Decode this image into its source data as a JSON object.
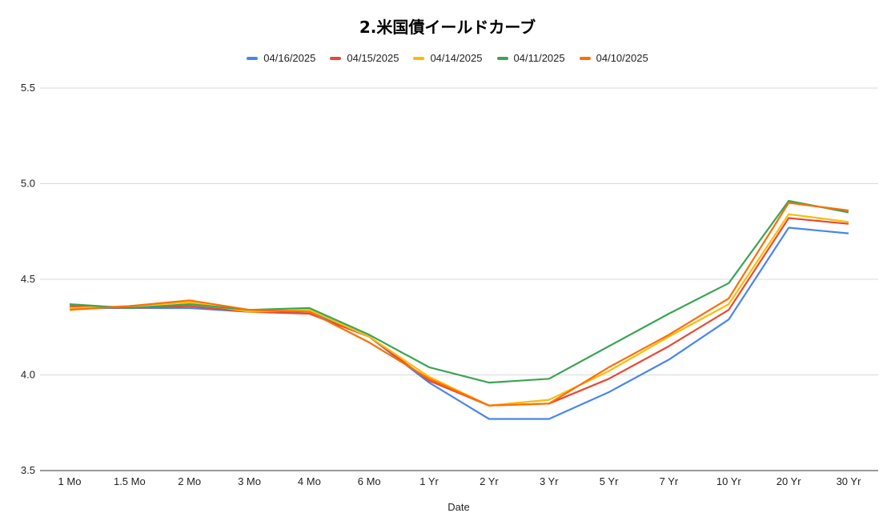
{
  "chart_data": {
    "type": "line",
    "title": "2.米国債イールドカーブ",
    "xlabel": "Date",
    "ylabel": "",
    "ylim": [
      3.5,
      5.5
    ],
    "yticks": [
      "5.5",
      "5.0",
      "4.5",
      "4.0",
      "3.5"
    ],
    "grid": true,
    "legend_position": "top",
    "categories": [
      "1 Mo",
      "1.5 Mo",
      "2 Mo",
      "3 Mo",
      "4 Mo",
      "6 Mo",
      "1 Yr",
      "2 Yr",
      "3 Yr",
      "5 Yr",
      "7 Yr",
      "10 Yr",
      "20 Yr",
      "30 Yr"
    ],
    "series": [
      {
        "name": "04/16/2025",
        "color": "#4a86e8",
        "values": [
          4.35,
          4.35,
          4.35,
          4.33,
          4.33,
          4.2,
          3.96,
          3.77,
          3.77,
          3.91,
          4.08,
          4.29,
          4.77,
          4.74
        ]
      },
      {
        "name": "04/15/2025",
        "color": "#e64a33",
        "values": [
          4.36,
          4.35,
          4.36,
          4.33,
          4.32,
          4.2,
          3.97,
          3.84,
          3.85,
          3.98,
          4.15,
          4.34,
          4.82,
          4.79
        ]
      },
      {
        "name": "04/14/2025",
        "color": "#f7bd06",
        "values": [
          4.35,
          4.36,
          4.38,
          4.33,
          4.34,
          4.2,
          3.99,
          3.84,
          3.87,
          4.02,
          4.2,
          4.37,
          4.84,
          4.8
        ]
      },
      {
        "name": "04/11/2025",
        "color": "#3ba455",
        "values": [
          4.37,
          4.35,
          4.37,
          4.34,
          4.35,
          4.21,
          4.04,
          3.96,
          3.98,
          4.15,
          4.32,
          4.48,
          4.91,
          4.85
        ]
      },
      {
        "name": "04/10/2025",
        "color": "#ff6d01",
        "values": [
          4.34,
          4.36,
          4.39,
          4.34,
          4.33,
          4.17,
          3.98,
          3.84,
          3.85,
          4.04,
          4.21,
          4.4,
          4.9,
          4.86
        ]
      }
    ]
  }
}
